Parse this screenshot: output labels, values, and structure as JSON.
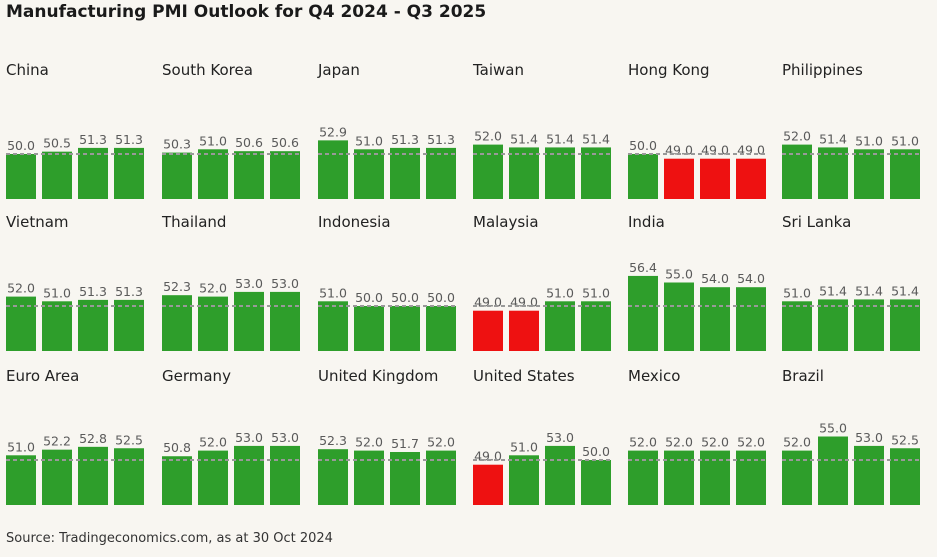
{
  "title": "Manufacturing PMI Outlook for Q4 2024 - Q3 2025",
  "source": "Source: Tradingeconomics.com, as at 30 Oct 2024",
  "colors": {
    "above": "#2e9e2b",
    "below": "#ee1111",
    "reference_line": "#999999",
    "background": "#f8f6f1"
  },
  "chart_data": {
    "type": "bar",
    "title": "Manufacturing PMI Outlook for Q4 2024 - Q3 2025",
    "reference_value": 50,
    "reference_line": "dashed",
    "grid": false,
    "legend": "none",
    "panels": [
      {
        "name": "China",
        "values": [
          50.0,
          50.5,
          51.3,
          51.3
        ]
      },
      {
        "name": "South Korea",
        "values": [
          50.3,
          51.0,
          50.6,
          50.6
        ]
      },
      {
        "name": "Japan",
        "values": [
          52.9,
          51.0,
          51.3,
          51.3
        ]
      },
      {
        "name": "Taiwan",
        "values": [
          52.0,
          51.4,
          51.4,
          51.4
        ]
      },
      {
        "name": "Hong Kong",
        "values": [
          50.0,
          49.0,
          49.0,
          49.0
        ]
      },
      {
        "name": "Philippines",
        "values": [
          52.0,
          51.4,
          51.0,
          51.0
        ]
      },
      {
        "name": "Vietnam",
        "values": [
          52.0,
          51.0,
          51.3,
          51.3
        ]
      },
      {
        "name": "Thailand",
        "values": [
          52.3,
          52.0,
          53.0,
          53.0
        ]
      },
      {
        "name": "Indonesia",
        "values": [
          51.0,
          50.0,
          50.0,
          50.0
        ]
      },
      {
        "name": "Malaysia",
        "values": [
          49.0,
          49.0,
          51.0,
          51.0
        ]
      },
      {
        "name": "India",
        "values": [
          56.4,
          55.0,
          54.0,
          54.0
        ]
      },
      {
        "name": "Sri Lanka",
        "values": [
          51.0,
          51.4,
          51.4,
          51.4
        ]
      },
      {
        "name": "Euro Area",
        "values": [
          51.0,
          52.2,
          52.8,
          52.5
        ]
      },
      {
        "name": "Germany",
        "values": [
          50.8,
          52.0,
          53.0,
          53.0
        ]
      },
      {
        "name": "United Kingdom",
        "values": [
          52.3,
          52.0,
          51.7,
          52.0
        ]
      },
      {
        "name": "United States",
        "values": [
          49.0,
          51.0,
          53.0,
          50.0
        ]
      },
      {
        "name": "Mexico",
        "values": [
          52.0,
          52.0,
          52.0,
          52.0
        ]
      },
      {
        "name": "Brazil",
        "values": [
          52.0,
          55.0,
          53.0,
          52.5
        ]
      }
    ]
  }
}
